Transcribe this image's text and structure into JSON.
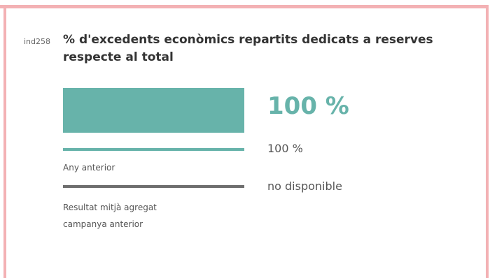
{
  "indicator": {
    "id": "ind258",
    "title": "% d'excedents econòmics repartits dedicats a reserves respecte al total",
    "current": {
      "value_label": "100 %",
      "fraction": 1.0
    },
    "previous_year": {
      "label": "Any anterior",
      "value_label": "100 %",
      "fraction": 1.0
    },
    "aggregate_average": {
      "label": "Resultat mitjà agregat campanya anterior",
      "value_label": "no disponible"
    }
  },
  "colors": {
    "accent": "#67b3aa",
    "average_line": "#6e6e6e",
    "frame": "#f3b1b4",
    "text": "#333333"
  }
}
